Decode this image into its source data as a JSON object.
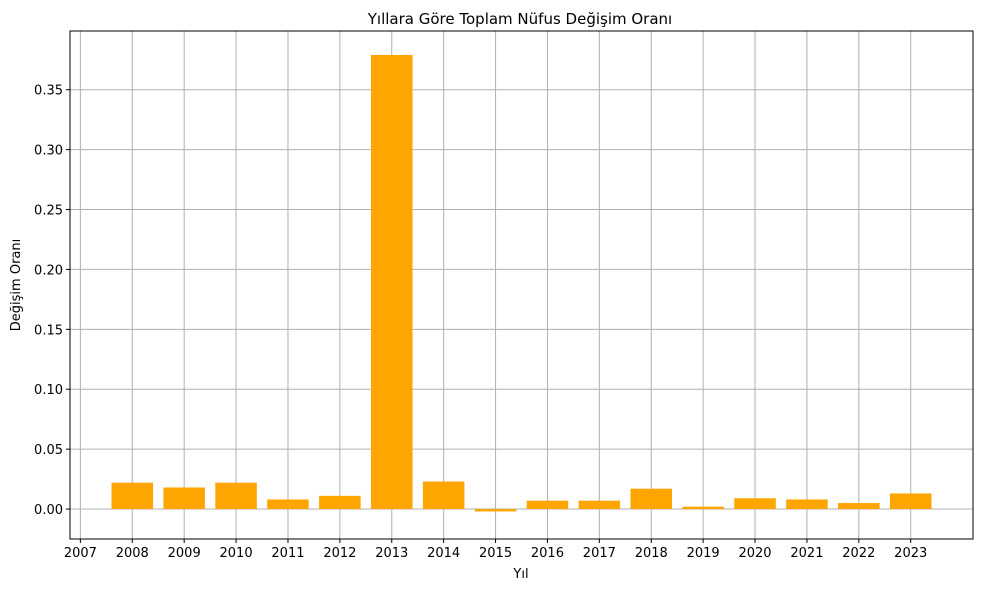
{
  "chart_data": {
    "type": "bar",
    "title": "Yıllara Göre Toplam Nüfus Değişim Oranı",
    "xlabel": "Yıl",
    "ylabel": "Değişim Oranı",
    "x": [
      2008,
      2009,
      2010,
      2011,
      2012,
      2013,
      2014,
      2015,
      2016,
      2017,
      2018,
      2019,
      2020,
      2021,
      2022,
      2023
    ],
    "values": [
      0.022,
      0.018,
      0.022,
      0.008,
      0.011,
      0.379,
      0.023,
      -0.002,
      0.007,
      0.007,
      0.017,
      0.002,
      0.009,
      0.008,
      0.005,
      0.013
    ],
    "xticks": [
      "2007",
      "2008",
      "2009",
      "2010",
      "2011",
      "2012",
      "2013",
      "2014",
      "2015",
      "2016",
      "2017",
      "2018",
      "2019",
      "2020",
      "2021",
      "2022",
      "2023"
    ],
    "yticks": [
      "0.00",
      "0.05",
      "0.10",
      "0.15",
      "0.20",
      "0.25",
      "0.30",
      "0.35"
    ],
    "xlim": [
      2006.8,
      2024.2
    ],
    "ylim": [
      -0.025,
      0.399
    ],
    "bar_color": "#ffa500",
    "grid": true
  }
}
